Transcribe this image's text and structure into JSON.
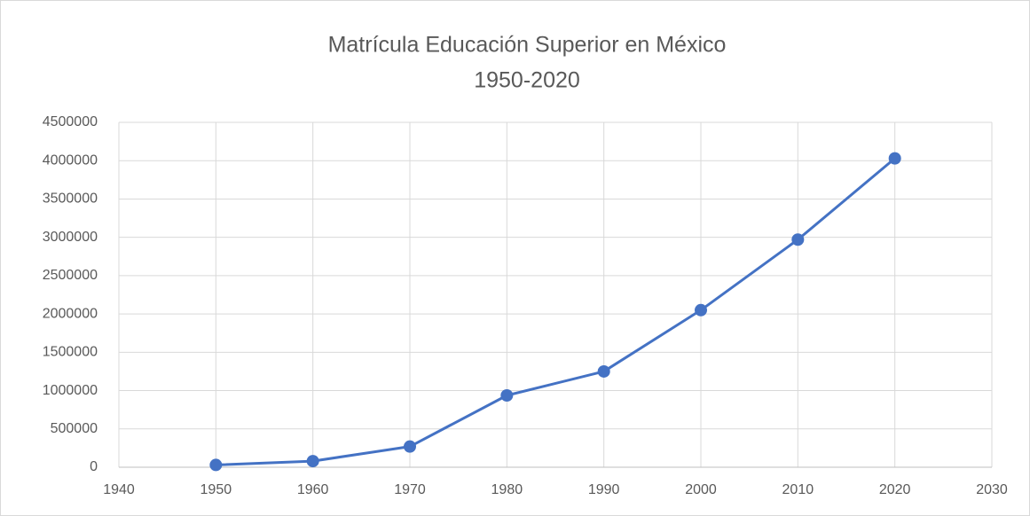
{
  "chart_data": {
    "type": "line",
    "title": "Matrícula Educación Superior en México",
    "subtitle": "1950-2020",
    "x": [
      1950,
      1960,
      1970,
      1980,
      1990,
      2000,
      2010,
      2020
    ],
    "series": [
      {
        "color": "#4472c4",
        "values": [
          30000,
          80000,
          270000,
          937000,
          1250000,
          2050000,
          2970000,
          4030000
        ]
      }
    ],
    "xlim": [
      1940,
      2030
    ],
    "xticks": [
      1940,
      1950,
      1960,
      1970,
      1980,
      1990,
      2000,
      2010,
      2020,
      2030
    ],
    "ylim": [
      0,
      4500000
    ],
    "yticks": [
      0,
      500000,
      1000000,
      1500000,
      2000000,
      2500000,
      3000000,
      3500000,
      4000000,
      4500000
    ],
    "grid": true
  }
}
